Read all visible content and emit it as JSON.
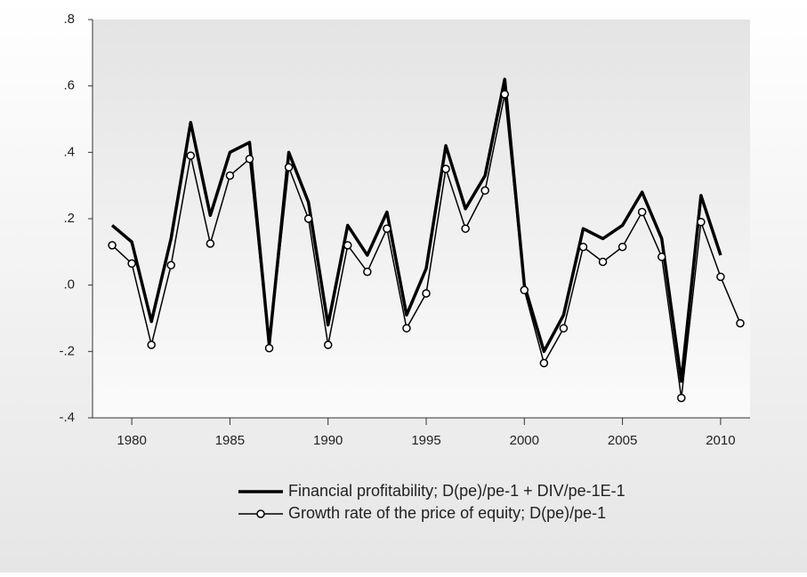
{
  "chart_data": {
    "type": "line",
    "x": [
      1979,
      1980,
      1981,
      1982,
      1983,
      1984,
      1985,
      1986,
      1987,
      1988,
      1989,
      1990,
      1991,
      1992,
      1993,
      1994,
      1995,
      1996,
      1997,
      1998,
      1999,
      2000,
      2001,
      2002,
      2003,
      2004,
      2005,
      2006,
      2007,
      2008,
      2009,
      2010,
      2011
    ],
    "series": [
      {
        "name": "Financial profitability; D(pe)/pe-1 + DIV/pe-1E-1",
        "color": "#000000",
        "values": [
          0.18,
          0.13,
          -0.11,
          0.14,
          0.49,
          0.21,
          0.4,
          0.43,
          -0.18,
          0.4,
          0.25,
          -0.12,
          0.18,
          0.09,
          0.22,
          -0.09,
          0.05,
          0.42,
          0.23,
          0.33,
          0.62,
          0.0,
          -0.2,
          -0.09,
          0.17,
          0.14,
          0.18,
          0.28,
          0.14,
          -0.29,
          0.27,
          0.09,
          null
        ]
      },
      {
        "name": "Growth rate of the price of equity; D(pe)/pe-1",
        "color": "#000000",
        "values": [
          0.12,
          0.065,
          -0.18,
          0.06,
          0.39,
          0.125,
          0.33,
          0.38,
          -0.19,
          0.355,
          0.2,
          -0.18,
          0.12,
          0.04,
          0.17,
          -0.13,
          -0.025,
          0.35,
          0.17,
          0.285,
          0.575,
          -0.015,
          -0.235,
          -0.13,
          0.115,
          0.07,
          0.115,
          0.22,
          0.085,
          -0.34,
          0.19,
          0.025,
          -0.115
        ]
      }
    ],
    "xlim": [
      1978,
      2011.5
    ],
    "xticks": [
      1980,
      1985,
      1990,
      1995,
      2000,
      2005,
      2010
    ],
    "ylim": [
      -0.4,
      0.8
    ],
    "yticks": [
      {
        "value": -0.4,
        "label": "-.4"
      },
      {
        "value": -0.2,
        "label": "-.2"
      },
      {
        "value": 0,
        "label": ".0"
      },
      {
        "value": 0.2,
        "label": ".2"
      },
      {
        "value": 0.4,
        "label": ".4"
      },
      {
        "value": 0.6,
        "label": ".6"
      },
      {
        "value": 0.8,
        "label": ".8"
      }
    ]
  }
}
